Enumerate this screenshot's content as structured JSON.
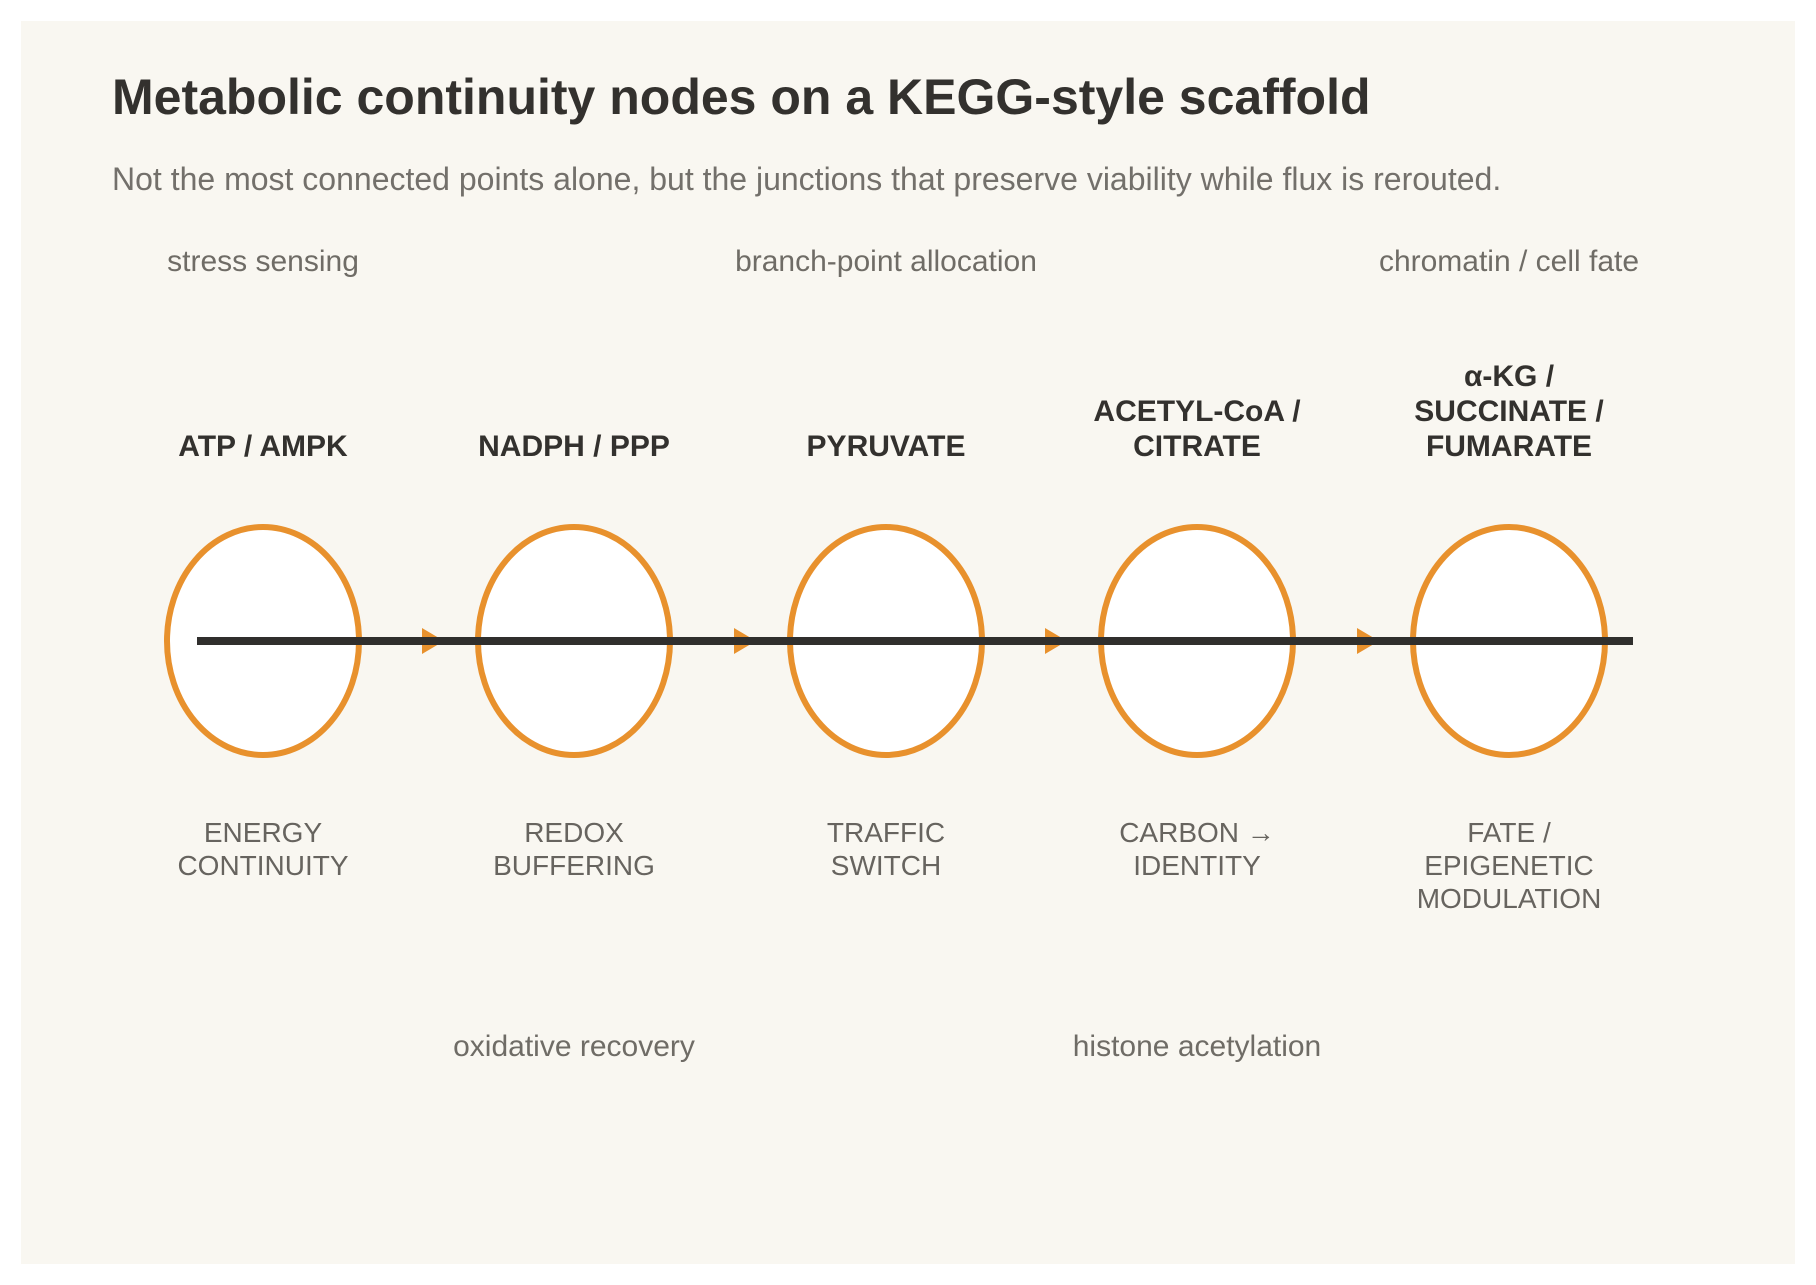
{
  "header": {
    "title": "Metabolic continuity nodes on a KEGG-style scaffold",
    "subtitle": "Not the most connected points alone, but the junctions that preserve viability while flux is rerouted."
  },
  "lanes": {
    "top": [
      "stress sensing",
      "branch-point allocation",
      "chromatin / cell fate"
    ],
    "bottom": [
      "oxidative recovery",
      "histone acetylation"
    ]
  },
  "diagram": {
    "type": "flow",
    "direction": "left-to-right",
    "nodes": [
      {
        "label": "ATP / AMPK",
        "role": "ENERGY\nCONTINUITY"
      },
      {
        "label": "NADPH / PPP",
        "role": "REDOX\nBUFFERING"
      },
      {
        "label": "PYRUVATE",
        "role": "TRAFFIC\nSWITCH"
      },
      {
        "label": "ACETYL-CoA /\nCITRATE",
        "role": "CARBON →\nIDENTITY"
      },
      {
        "label": "α-KG /\nSUCCINATE /\nFUMARATE",
        "role": "FATE /\nEPIGENETIC\nMODULATION"
      }
    ],
    "colors": {
      "node_stroke": "#E8912D",
      "node_fill": "#FFFFFF",
      "flow_line": "#302F2D",
      "arrowhead": "#E8912D"
    }
  }
}
